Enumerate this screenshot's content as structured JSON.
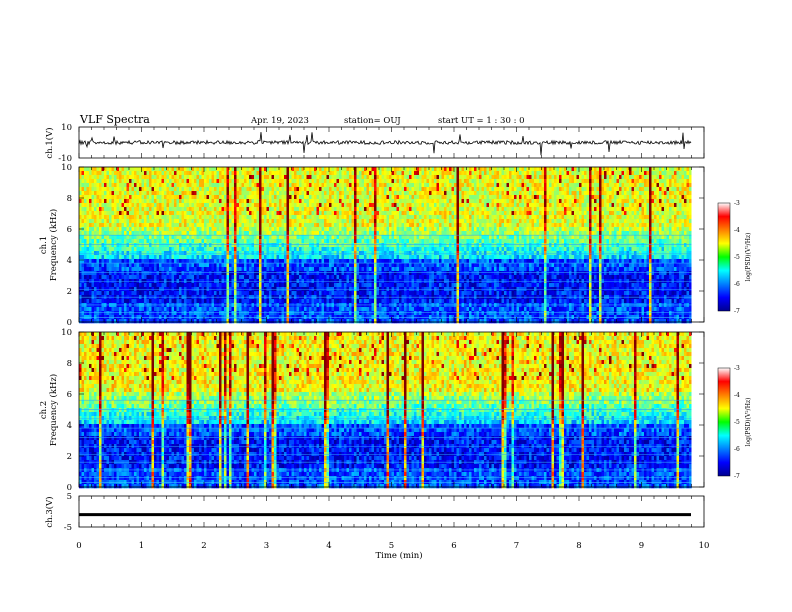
{
  "header": {
    "title": "VLF Spectra",
    "date": "Apr. 19, 2023",
    "station": "station= OUJ",
    "start": "start  UT =   1 : 30 : 0"
  },
  "chart_data": [
    {
      "type": "line",
      "panel": "ch1-waveform",
      "ylabel": "ch.1(V)",
      "ylim": [
        -10,
        10
      ],
      "yticks": [
        "10",
        "-10"
      ],
      "baseline_v": 0,
      "trace_color": "#000000"
    },
    {
      "type": "heatmap",
      "panel": "ch1-spectrogram",
      "ylabel_line1": "ch.1",
      "ylabel_line2": "Frequency  (kHz)",
      "ylim": [
        0,
        10
      ],
      "yticks": [
        "0",
        "2",
        "4",
        "6",
        "8",
        "10"
      ],
      "colorbar": {
        "label": "log(PSD)(V²/Hz)",
        "range": [
          -7,
          -3
        ],
        "ticks": [
          "-3",
          "-4",
          "-5",
          "-6",
          "-7"
        ]
      }
    },
    {
      "type": "heatmap",
      "panel": "ch2-spectrogram",
      "ylabel_line1": "ch.2",
      "ylabel_line2": "Frequency  (kHz)",
      "ylim": [
        0,
        10
      ],
      "yticks": [
        "0",
        "2",
        "4",
        "6",
        "8",
        "10"
      ],
      "colorbar": {
        "label": "log(PSD)(V²/Hz)",
        "range": [
          -7,
          -3
        ],
        "ticks": [
          "-3",
          "-4",
          "-5",
          "-6",
          "-7"
        ]
      }
    },
    {
      "type": "line",
      "panel": "ch3-waveform",
      "ylabel": "ch.3(V)",
      "ylim": [
        -5,
        5
      ],
      "yticks": [
        "5",
        "-5"
      ],
      "baseline_v": -1,
      "trace_color": "#000000"
    }
  ],
  "xaxis": {
    "label": "Time  (min)",
    "xlim": [
      0,
      10
    ],
    "ticks": [
      "0",
      "1",
      "2",
      "3",
      "4",
      "5",
      "6",
      "7",
      "8",
      "9",
      "10"
    ],
    "data_end_min": 9.8
  }
}
